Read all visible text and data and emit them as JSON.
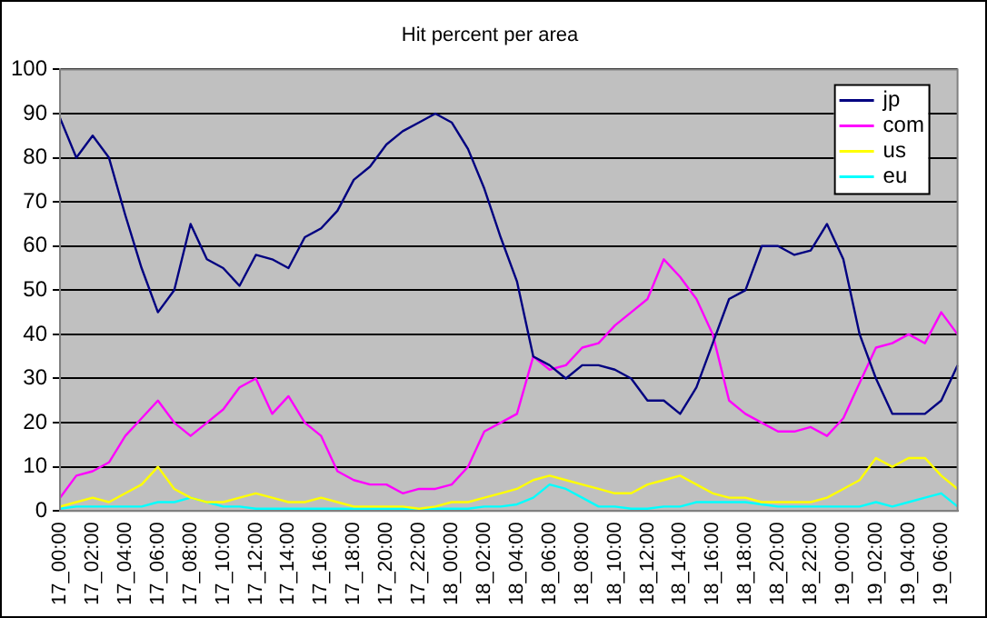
{
  "chart_data": {
    "type": "line",
    "title": "Hit percent per area",
    "categories": [
      "17_00:00",
      null,
      "17_02:00",
      null,
      "17_04:00",
      null,
      "17_06:00",
      null,
      "17_08:00",
      null,
      "17_10:00",
      null,
      "17_12:00",
      null,
      "17_14:00",
      null,
      "17_16:00",
      null,
      "17_18:00",
      null,
      "17_20:00",
      null,
      "17_22:00",
      null,
      "18_00:00",
      null,
      "18_02:00",
      null,
      "18_04:00",
      null,
      "18_06:00",
      null,
      "18_08:00",
      null,
      "18_10:00",
      null,
      "18_12:00",
      null,
      "18_14:00",
      null,
      "18_16:00",
      null,
      "18_18:00",
      null,
      "18_20:00",
      null,
      "18_22:00",
      null,
      "19_00:00",
      null,
      "19_02:00",
      null,
      "19_04:00",
      null,
      "19_06:00",
      null
    ],
    "series": [
      {
        "name": "jp",
        "color": "#000080",
        "values": [
          89,
          80,
          85,
          80,
          67,
          55,
          45,
          50,
          65,
          57,
          55,
          51,
          58,
          57,
          55,
          62,
          64,
          68,
          75,
          78,
          83,
          86,
          88,
          90,
          88,
          82,
          73,
          62,
          52,
          35,
          33,
          30,
          33,
          33,
          32,
          30,
          25,
          25,
          22,
          28,
          38,
          48,
          50,
          60,
          60,
          58,
          59,
          65,
          57,
          40,
          30,
          22,
          22,
          22,
          25,
          33
        ]
      },
      {
        "name": "com",
        "color": "#ff00ff",
        "values": [
          3,
          8,
          9,
          11,
          17,
          21,
          25,
          20,
          17,
          20,
          23,
          28,
          30,
          22,
          26,
          20,
          17,
          9,
          7,
          6,
          6,
          4,
          5,
          5,
          6,
          10,
          18,
          20,
          22,
          35,
          32,
          33,
          37,
          38,
          42,
          45,
          48,
          57,
          53,
          48,
          40,
          25,
          22,
          20,
          18,
          18,
          19,
          17,
          21,
          29,
          37,
          38,
          40,
          38,
          45,
          40
        ]
      },
      {
        "name": "us",
        "color": "#ffff00",
        "values": [
          1,
          2,
          3,
          2,
          4,
          6,
          10,
          5,
          3,
          2,
          2,
          3,
          4,
          3,
          2,
          2,
          3,
          2,
          1,
          1,
          1,
          1,
          0.5,
          1,
          2,
          2,
          3,
          4,
          5,
          7,
          8,
          7,
          6,
          5,
          4,
          4,
          6,
          7,
          8,
          6,
          4,
          3,
          3,
          2,
          2,
          2,
          2,
          3,
          5,
          7,
          12,
          10,
          12,
          12,
          8,
          5
        ]
      },
      {
        "name": "eu",
        "color": "#00ffff",
        "values": [
          0.5,
          1,
          1,
          1,
          1,
          1,
          2,
          2,
          3,
          2,
          1,
          1,
          0.5,
          0.5,
          0.5,
          0.5,
          0.5,
          0.5,
          0.5,
          0.5,
          0.5,
          0.5,
          0.5,
          0.5,
          0.5,
          0.5,
          1,
          1,
          1.5,
          3,
          6,
          5,
          3,
          1,
          1,
          0.5,
          0.5,
          1,
          1,
          2,
          2,
          2,
          2,
          1.5,
          1,
          1,
          1,
          1,
          1,
          1,
          2,
          1,
          2,
          3,
          4,
          1
        ]
      }
    ],
    "ylim": [
      0,
      100
    ],
    "yticks": [
      0,
      10,
      20,
      30,
      40,
      50,
      60,
      70,
      80,
      90,
      100
    ],
    "grid": "y",
    "legend": "top right"
  }
}
